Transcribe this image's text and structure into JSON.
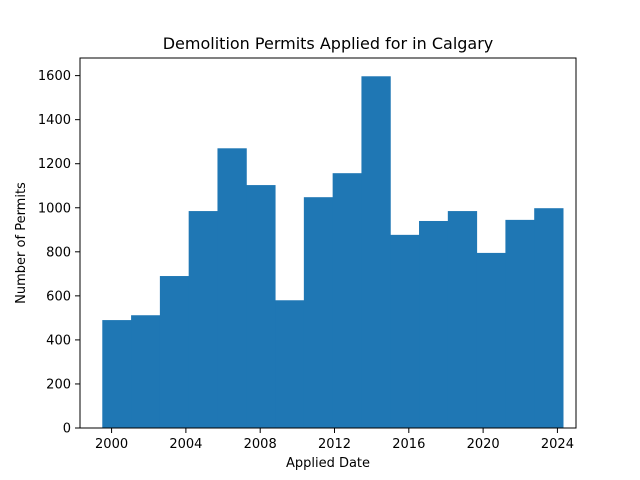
{
  "chart_data": {
    "type": "bar",
    "title": "Demolition Permits Applied for in Calgary",
    "xlabel": "Applied Date",
    "ylabel": "Number of Permits",
    "bar_color": "#1f77b4",
    "xlim": [
      1998.3,
      2025.0
    ],
    "ylim": [
      0,
      1680
    ],
    "xticks": [
      2000,
      2004,
      2008,
      2012,
      2016,
      2020,
      2024
    ],
    "xtick_labels": [
      "2000",
      "2004",
      "2008",
      "2012",
      "2016",
      "2020",
      "2024"
    ],
    "yticks": [
      0,
      200,
      400,
      600,
      800,
      1000,
      1200,
      1400,
      1600
    ],
    "ytick_labels": [
      "0",
      "200",
      "400",
      "600",
      "800",
      "1000",
      "1200",
      "1400",
      "1600"
    ],
    "bin_edges": [
      1999.5,
      2001.05,
      2002.6,
      2004.15,
      2005.7,
      2007.25,
      2008.8,
      2010.35,
      2011.9,
      2013.45,
      2015.0,
      2016.55,
      2018.1,
      2019.65,
      2021.2,
      2022.75,
      2024.3
    ],
    "values": [
      490,
      512,
      690,
      985,
      1270,
      1103,
      580,
      1048,
      1157,
      1597,
      877,
      940,
      985,
      795,
      945,
      998
    ],
    "grid": false,
    "legend": "none"
  }
}
